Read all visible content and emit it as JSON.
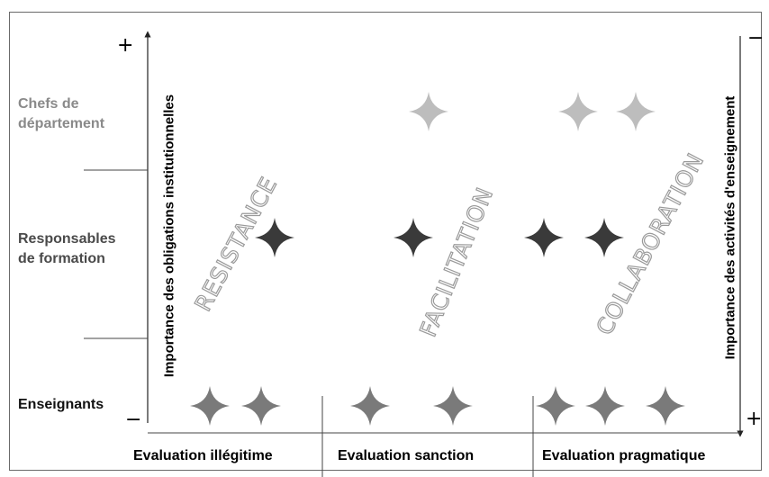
{
  "rows": {
    "chefs": "Chefs de\ndépartement",
    "responsables": "Responsables\nde formation",
    "enseignants": "Enseignants"
  },
  "columns": {
    "illegitime": "Evaluation illégitime",
    "sanction": "Evaluation sanction",
    "pragmatique": "Evaluation pragmatique"
  },
  "zones": {
    "resistance": "RESISTANCE",
    "facilitation": "FACILITATION",
    "collaboration": "COLLABORATION"
  },
  "axes": {
    "left": "Importance des obligations institutionnelles",
    "right": "Importance des activités d'enseignement"
  },
  "signs": {
    "left_top": "+",
    "left_bottom": "−",
    "right_top": "−",
    "right_bottom": "+"
  },
  "colors": {
    "chefs_star": "#bdbdbd",
    "responsables_star": "#3a3a3a",
    "enseignants_star": "#7a7a7a",
    "chefs_label": "#8a8a8a",
    "zone_outline": "#9a9a9a"
  },
  "stars": {
    "chefs": {
      "illegitime": 0,
      "sanction": 1,
      "pragmatique": 2
    },
    "responsables": {
      "illegitime": 1,
      "sanction": 1,
      "pragmatique": 2
    },
    "enseignants": {
      "illegitime": 2,
      "sanction": 2,
      "pragmatique": 3
    }
  }
}
